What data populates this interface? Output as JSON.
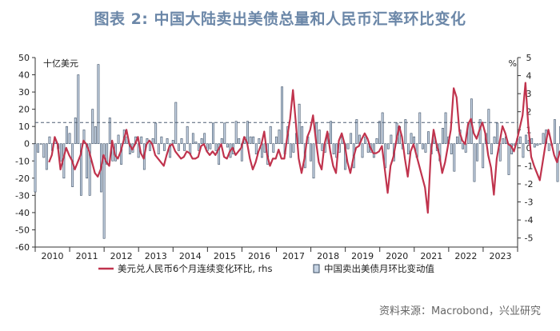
{
  "title": "图表 2:  中国大陆卖出美债总量和人民币汇率环比变化",
  "source": "资料来源：Macrobond，兴业研究",
  "chart_data": {
    "type": "bar+line",
    "left_axis": {
      "label": "十亿美元",
      "min": -60,
      "max": 50,
      "ticks": [
        50,
        40,
        30,
        20,
        10,
        0,
        -10,
        -20,
        -30,
        -40,
        -50,
        -60
      ]
    },
    "right_axis": {
      "label": "%",
      "min": -5.5,
      "max": 5,
      "ticks": [
        5,
        4,
        3,
        2,
        1,
        0,
        -1,
        -2,
        -3,
        -4,
        -5
      ]
    },
    "x_axis": {
      "start": 2010,
      "end": 2024,
      "tick_labels": [
        "2010",
        "2011",
        "2012",
        "2013",
        "2014",
        "2015",
        "2016",
        "2017",
        "2018",
        "2019",
        "2020",
        "2021",
        "2022",
        "2023"
      ]
    },
    "reference_line": {
      "axis": "right",
      "value": 1.4,
      "style": "dashed"
    },
    "series": [
      {
        "name": "美元兑人民币6个月连续变化环比, rhs",
        "type": "line",
        "axis": "right",
        "color": "#c0334d",
        "x_start": 2010.4,
        "x_step": 0.0833,
        "values": [
          -0.8,
          -0.4,
          0.6,
          0.2,
          -1.2,
          -0.6,
          0,
          -0.4,
          -0.7,
          -1.2,
          -0.8,
          -0.4,
          0.4,
          0.2,
          -0.2,
          -0.8,
          -1.4,
          -1.6,
          -1.2,
          -0.4,
          -0.8,
          -1.0,
          0.4,
          -0.4,
          -0.6,
          -0.2,
          0.4,
          1.0,
          0.2,
          -0.1,
          0.2,
          0.6,
          -0.3,
          -0.6,
          0.2,
          0.4,
          0.2,
          -0.4,
          -0.6,
          -0.8,
          -1.0,
          -0.4,
          0.1,
          0.2,
          -0.2,
          -0.4,
          -0.6,
          -0.5,
          -0.2,
          -0.3,
          -0.6,
          -0.6,
          -0.5,
          0.1,
          0.2,
          -0.2,
          -0.4,
          -0.2,
          -0.4,
          -0.1,
          0.2,
          -0.5,
          -0.6,
          -0.2,
          0,
          -0.4,
          -0.2,
          0,
          0.6,
          0.3,
          -0.6,
          -1.2,
          -0.8,
          -0.2,
          0.2,
          0.9,
          -0.4,
          -1.0,
          -0.6,
          -0.6,
          -0.1,
          -0.6,
          -0.6,
          0.6,
          1.6,
          3.2,
          1.4,
          -0.6,
          -1.4,
          -0.6,
          0.6,
          1.0,
          1.8,
          0.4,
          -0.8,
          -1.2,
          0.2,
          0.9,
          -0.2,
          -1.0,
          -1.4,
          0.4,
          0.8,
          0.2,
          -0.8,
          -1.4,
          -0.6,
          0,
          0.1,
          0.5,
          0.8,
          0.5,
          0,
          -0.3,
          -0.3,
          -0.2,
          0.1,
          -1.2,
          -2.5,
          -1.0,
          -0.5,
          0.4,
          1.2,
          0.6,
          -0.6,
          -1.6,
          -0.2,
          0.2,
          -0.4,
          -1.0,
          -1.6,
          -2.2,
          -3.6,
          -0.4,
          1.0,
          0.2,
          -0.4,
          -1.4,
          -0.8,
          0.1,
          1.0,
          3.3,
          2.8,
          0.9,
          0.4,
          0.2,
          1.3,
          1.6,
          0.8,
          0.5,
          1.0,
          1.4,
          0.8,
          -0.4,
          -1.1,
          -2.6,
          -0.6,
          0.3,
          1.2,
          0.8,
          0.2,
          0.1,
          -0.2,
          0.4,
          1.1,
          1.8,
          3.6,
          1.2,
          -0.5,
          -1.0,
          -1.4,
          -1.8,
          -0.8,
          0.2,
          1.0,
          0.3,
          -0.4,
          -0.8,
          -0.2,
          -0.6,
          -1.4,
          -1.8,
          -1.6,
          -1.3,
          -1.8,
          -1.6,
          -1.5,
          -1.9,
          -1.0,
          -0.4,
          -0.4,
          -0.2,
          0.2,
          0.2,
          -0.6,
          -1.4,
          -0.8,
          -0.4,
          -0.6,
          0.2,
          0.6,
          0.4,
          1.2,
          1.7,
          0.5,
          0,
          -0.3,
          0.2,
          -0.8,
          -0.4,
          -0.4,
          0.4,
          1.4,
          4.0,
          2.0,
          0.4,
          0.2,
          0.6,
          2.0,
          3.3,
          3.1,
          2.4,
          0.6,
          -1.0,
          -3.4,
          -2.6,
          -2.6,
          0.3,
          1.4,
          2.4,
          3.0,
          2.4,
          1.7,
          0,
          -2.0,
          -0.4,
          1.8,
          0.2,
          -0.1
        ]
      },
      {
        "name": "中国卖出美债月环比变动值",
        "type": "bar",
        "axis": "left",
        "color": "#c6d3e3",
        "border": "#3b4d63",
        "x_start": 2010.0,
        "x_step": 0.0833,
        "values": [
          -28,
          -5,
          0,
          -8,
          -15,
          4,
          -4,
          2,
          -3,
          -10,
          -20,
          10,
          6,
          -25,
          15,
          40,
          -30,
          8,
          -20,
          -30,
          20,
          10,
          46,
          -28,
          -55,
          -12,
          15,
          -10,
          -10,
          5,
          -12,
          8,
          4,
          -6,
          -5,
          4,
          -8,
          4,
          -15,
          3,
          -4,
          3,
          12,
          -6,
          4,
          -4,
          3,
          -8,
          2,
          24,
          -4,
          3,
          -4,
          10,
          -6,
          6,
          1,
          -4,
          3,
          6,
          -4,
          -3,
          12,
          -4,
          -12,
          3,
          12,
          -2,
          -8,
          -6,
          13,
          3,
          -10,
          4,
          13,
          4,
          4,
          -6,
          3,
          -8,
          -5,
          -12,
          10,
          -5,
          4,
          8,
          33,
          -6,
          10,
          -8,
          -5,
          6,
          23,
          10,
          -14,
          4,
          -10,
          -20,
          12,
          8,
          -4,
          -5,
          6,
          13,
          -6,
          -8,
          -5,
          4,
          -15,
          -3,
          6,
          -14,
          14,
          5,
          -8,
          4,
          -5,
          -5,
          -8,
          3,
          13,
          18,
          -14,
          -3,
          5,
          -10,
          12,
          10,
          -3,
          14,
          -6,
          6,
          4,
          -8,
          18,
          -3,
          -5,
          7,
          -6,
          6,
          -4,
          -10,
          9,
          18,
          4,
          -6,
          -16,
          4,
          8,
          -3,
          -5,
          12,
          26,
          -22,
          -10,
          14,
          -14,
          6,
          20,
          -6,
          4,
          12,
          -10,
          3,
          4,
          -18,
          -6,
          -1,
          3,
          4,
          -8,
          5,
          2,
          3,
          -2,
          -1,
          0,
          6,
          8,
          -4,
          -1,
          14,
          -22,
          10,
          6,
          -4,
          -6,
          4,
          11,
          -10,
          -8,
          -20,
          6,
          -4,
          10,
          -6,
          5,
          3,
          -18,
          6,
          14,
          -4,
          -4,
          8,
          -8,
          20,
          -10,
          20,
          -10,
          18,
          -6,
          5,
          -10,
          -5,
          4,
          28,
          -48,
          16,
          -6,
          -4,
          -6,
          20,
          10,
          -12,
          -6,
          10,
          6,
          -2,
          14,
          -18,
          -4,
          26,
          -18,
          10,
          -10,
          6,
          4
        ]
      }
    ]
  }
}
